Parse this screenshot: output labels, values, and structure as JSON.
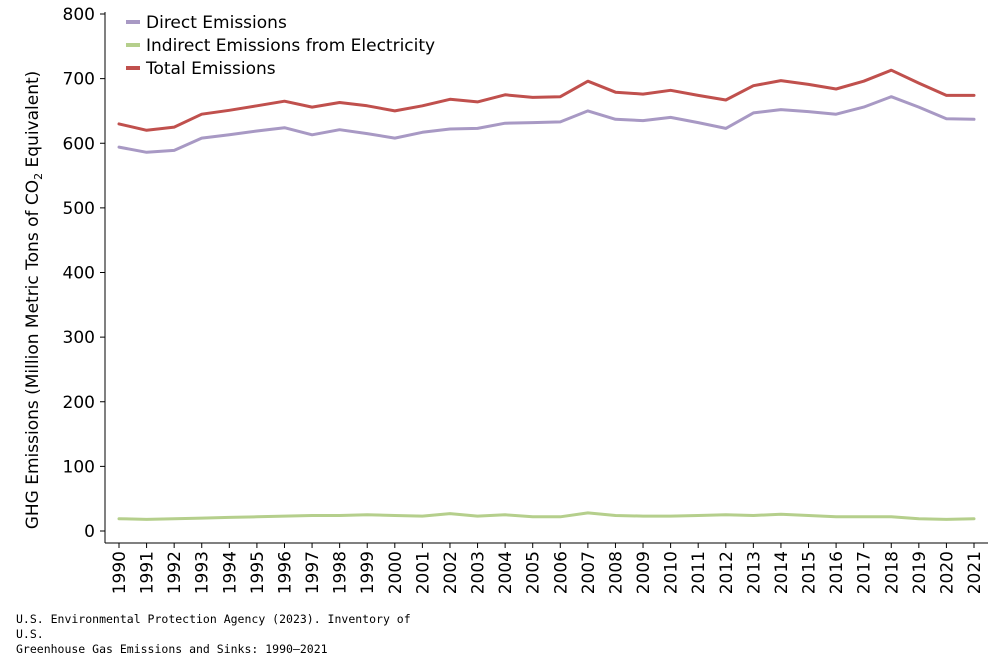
{
  "chart_data": {
    "type": "line",
    "title": "",
    "xlabel": "",
    "ylabel_prefix": "GHG Emissions (Million Metric Tons of CO",
    "ylabel_sub": "2",
    "ylabel_suffix": " Equivalent)",
    "ylim": [
      0,
      800
    ],
    "yticks": [
      0,
      100,
      200,
      300,
      400,
      500,
      600,
      700,
      800
    ],
    "grid": false,
    "legend_position": "top-left",
    "categories": [
      "1990",
      "1991",
      "1992",
      "1993",
      "1994",
      "1995",
      "1996",
      "1997",
      "1998",
      "1999",
      "2000",
      "2001",
      "2002",
      "2003",
      "2004",
      "2005",
      "2006",
      "2007",
      "2008",
      "2009",
      "2010",
      "2011",
      "2012",
      "2013",
      "2014",
      "2015",
      "2016",
      "2017",
      "2018",
      "2019",
      "2020",
      "2021"
    ],
    "series": [
      {
        "name": "Direct Emissions",
        "color": "#a899c4",
        "values": [
          594,
          586,
          589,
          608,
          613,
          619,
          624,
          613,
          621,
          615,
          608,
          617,
          622,
          623,
          631,
          632,
          633,
          650,
          637,
          635,
          640,
          632,
          623,
          647,
          652,
          649,
          645,
          656,
          672,
          656,
          638,
          637
        ]
      },
      {
        "name": "Indirect Emissions from Electricity",
        "color": "#b5cf8c",
        "values": [
          19,
          18,
          19,
          20,
          21,
          22,
          23,
          24,
          24,
          25,
          24,
          23,
          27,
          23,
          25,
          22,
          22,
          28,
          24,
          23,
          23,
          24,
          25,
          24,
          26,
          24,
          22,
          22,
          22,
          19,
          18,
          19
        ]
      },
      {
        "name": "Total Emissions",
        "color": "#c0504d",
        "values": [
          630,
          620,
          625,
          645,
          651,
          658,
          665,
          656,
          663,
          658,
          650,
          658,
          668,
          664,
          675,
          671,
          672,
          696,
          679,
          676,
          682,
          674,
          667,
          689,
          697,
          691,
          684,
          696,
          713,
          693,
          674,
          674
        ]
      }
    ]
  },
  "source": {
    "line1": "U.S. Environmental Protection Agency (2023). Inventory of U.S.",
    "line2": "Greenhouse Gas Emissions and Sinks: 1990–2021"
  }
}
